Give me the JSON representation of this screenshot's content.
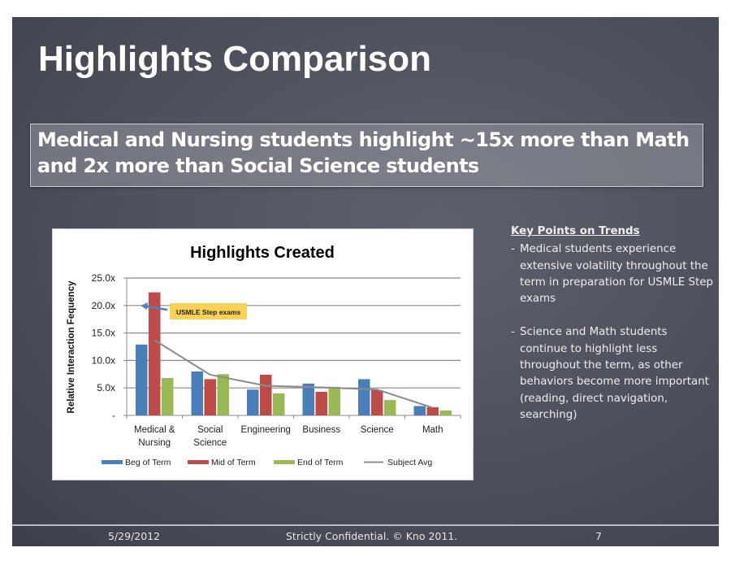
{
  "slide": {
    "title": "Highlights Comparison",
    "subtitle": "Medical and Nursing students highlight ~15x more than Math and 2x more than Social Science students",
    "background_color": "#50535e"
  },
  "key_points": {
    "heading": "Key Points on Trends",
    "items": [
      {
        "dash": "-",
        "text": "Medical students experience extensive volatility throughout the term in preparation for USMLE Step exams"
      },
      {
        "dash": "-",
        "text": "Science and Math students continue to highlight less throughout the term, as other behaviors become more important (reading, direct navigation, searching)"
      }
    ]
  },
  "footer": {
    "date": "5/29/2012",
    "confidential": "Strictly Confidential. © Kno 2011.",
    "page_number": "7"
  },
  "chart_data": {
    "type": "bar",
    "title": "Highlights Created",
    "xlabel": "",
    "ylabel": "Relative Interaction Fequency",
    "ylim": [
      0,
      25
    ],
    "yticks": [
      "-",
      "5.0x",
      "10.0x",
      "15.0x",
      "20.0x",
      "25.0x"
    ],
    "grid": true,
    "legend_position": "bottom",
    "categories": [
      "Medical & Nursing",
      "Social Science",
      "Engineering",
      "Business",
      "Science",
      "Math"
    ],
    "category_lines": [
      [
        "Medical &",
        "Nursing"
      ],
      [
        "Social",
        "Science"
      ],
      [
        "Engineering"
      ],
      [
        "Business"
      ],
      [
        "Science"
      ],
      [
        "Math"
      ]
    ],
    "series": [
      {
        "name": "Beg of Term",
        "type": "bar",
        "color": "#4a7ebb",
        "values": [
          12.9,
          8.0,
          4.7,
          5.8,
          6.6,
          1.7
        ]
      },
      {
        "name": "Mid of Term",
        "type": "bar",
        "color": "#be4b48",
        "values": [
          22.4,
          6.6,
          7.4,
          4.3,
          4.6,
          1.5
        ]
      },
      {
        "name": "End of Term",
        "type": "bar",
        "color": "#98b954",
        "values": [
          6.8,
          7.5,
          4.0,
          5.2,
          2.8,
          0.9
        ]
      },
      {
        "name": "Subject Avg",
        "type": "line",
        "color": "#8c8c8c",
        "values": [
          13.7,
          7.4,
          5.4,
          5.1,
          4.7,
          1.4
        ]
      }
    ],
    "annotations": [
      {
        "text": "USMLE Step exams",
        "background": "#f9d254",
        "arrow_target": "Medical & Nursing ~20.0x"
      }
    ]
  }
}
